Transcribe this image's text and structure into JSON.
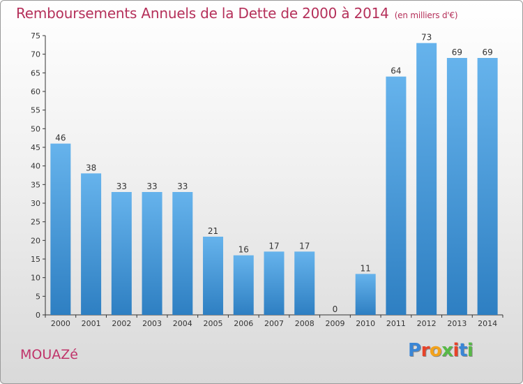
{
  "chart_data": {
    "type": "bar",
    "title": "Remboursements Annuels de la Dette de 2000 à 2014",
    "subtitle": "(en milliers d'€)",
    "categories": [
      "2000",
      "2001",
      "2002",
      "2003",
      "2004",
      "2005",
      "2006",
      "2007",
      "2008",
      "2009",
      "2010",
      "2011",
      "2012",
      "2013",
      "2014"
    ],
    "values": [
      46,
      38,
      33,
      33,
      33,
      21,
      16,
      17,
      17,
      0,
      11,
      64,
      73,
      69,
      69
    ],
    "ylim": [
      0,
      75
    ],
    "yticks": [
      0,
      5,
      10,
      15,
      20,
      25,
      30,
      35,
      40,
      45,
      50,
      55,
      60,
      65,
      70,
      75
    ],
    "xlabel": "",
    "ylabel": "",
    "grid": false,
    "legend": "none"
  },
  "footer": {
    "commune": "MOUAZé",
    "logo_letters": [
      "P",
      "r",
      "o",
      "x",
      "i",
      "t",
      "i"
    ]
  },
  "colors": {
    "title": "#b5305a",
    "bar_top": "#66b3ec",
    "bar_bottom": "#2e7fc2",
    "axis": "#333333",
    "logo": [
      "#3a86d6",
      "#e7432a",
      "#f2a21c",
      "#57b947",
      "#e7432a",
      "#3a86d6",
      "#57b947"
    ]
  }
}
